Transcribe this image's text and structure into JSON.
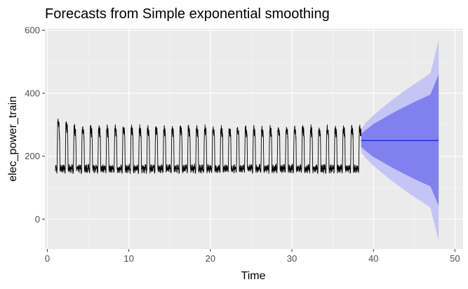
{
  "chart_data": {
    "type": "line",
    "title": "Forecasts from Simple exponential smoothing",
    "xlabel": "Time",
    "ylabel": "elec_power_train",
    "xlim": [
      -0.3,
      51
    ],
    "ylim": [
      -95,
      605
    ],
    "x_ticks": [
      0,
      10,
      20,
      30,
      40,
      50
    ],
    "y_ticks": [
      0,
      200,
      400,
      600
    ],
    "grid": true,
    "legend": "none",
    "series": [
      {
        "kind": "history",
        "x_start": 1.0,
        "x_end": 38.5,
        "cycle_length": 1.0,
        "base_level": 160,
        "peak_level": 290,
        "y_min": 140,
        "y_max": 350,
        "color": "#000000"
      },
      {
        "kind": "point_forecast",
        "x": [
          38.5,
          48
        ],
        "y": [
          250,
          250
        ],
        "color": "#0000ff"
      },
      {
        "kind": "interval_95",
        "x": [
          38.5,
          39,
          40,
          41,
          42,
          43,
          44,
          45,
          46,
          47,
          48
        ],
        "lower": [
          215,
          195,
          170,
          148,
          127,
          108,
          89,
          71,
          54,
          36,
          -70
        ],
        "upper": [
          285,
          305,
          330,
          352,
          373,
          392,
          411,
          429,
          446,
          464,
          570
        ],
        "color": "#c4c4f5"
      },
      {
        "kind": "interval_80",
        "x": [
          38.5,
          39,
          40,
          41,
          42,
          43,
          44,
          45,
          46,
          47,
          48
        ],
        "lower": [
          230,
          218,
          198,
          183,
          168,
          154,
          141,
          128,
          116,
          104,
          42
        ],
        "upper": [
          270,
          282,
          302,
          317,
          332,
          346,
          359,
          372,
          384,
          396,
          460
        ],
        "color": "#8080ee"
      }
    ]
  }
}
